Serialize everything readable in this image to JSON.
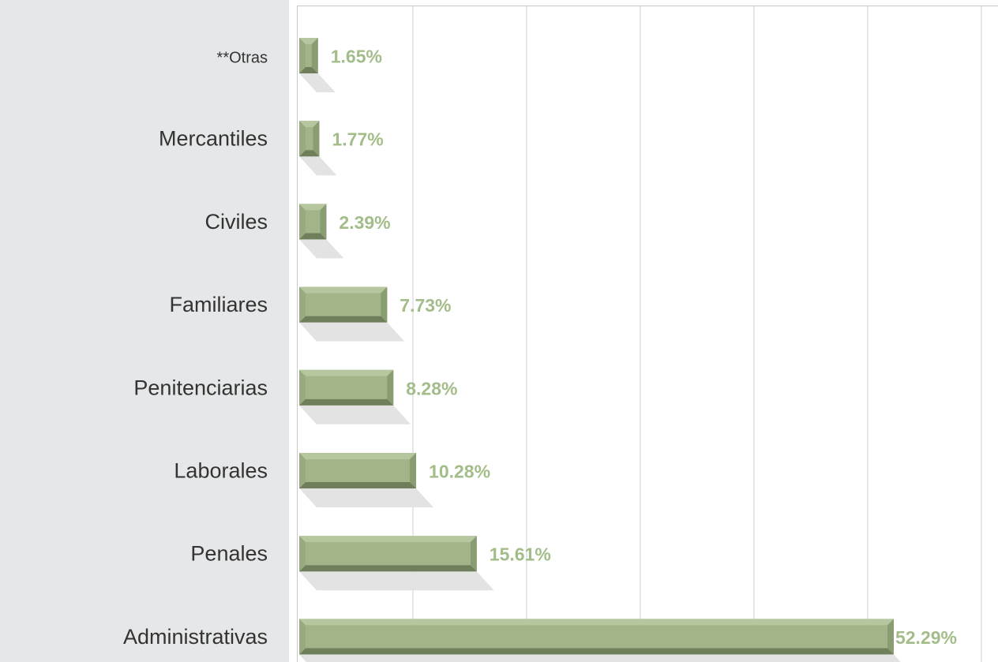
{
  "chart_data": {
    "type": "bar",
    "orientation": "horizontal",
    "categories": [
      "**Otras",
      "Mercantiles",
      "Civiles",
      "Familiares",
      "Penitenciarias",
      "Laborales",
      "Penales",
      "Administrativas"
    ],
    "values": [
      1.65,
      1.77,
      2.39,
      7.73,
      8.28,
      10.28,
      15.61,
      52.29
    ],
    "value_labels": [
      "1.65%",
      "1.77%",
      "2.39%",
      "7.73%",
      "8.28%",
      "10.28%",
      "15.61%",
      "52.29%"
    ],
    "xlim": [
      0,
      60
    ],
    "grid": true,
    "legend": "none",
    "bar_color": "#a2b589",
    "bar_dark_color": "#6f7f5c",
    "label_color": "#a3bd8a",
    "category_color": "#333333"
  }
}
